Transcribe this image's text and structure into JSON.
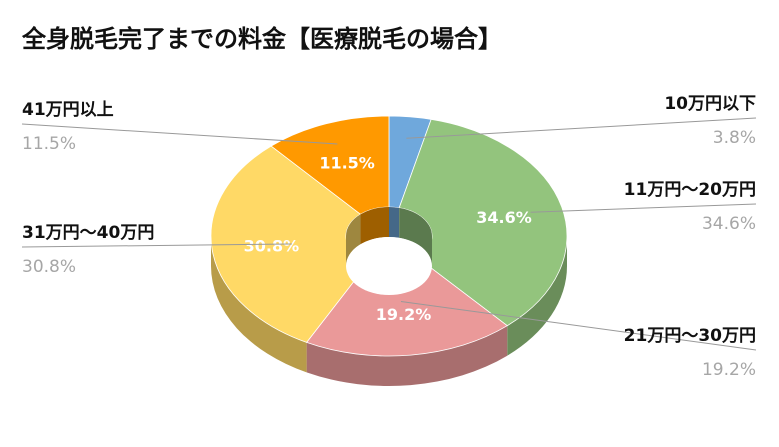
{
  "chart_data": {
    "type": "pie",
    "title": "全身脱毛完了までの料金【医療脱毛の場合】",
    "categories": [
      "10万円以下",
      "11万円～20万円",
      "21万円～30万円",
      "31万円～40万円",
      "41万円以上"
    ],
    "values": [
      3.8,
      34.6,
      19.2,
      30.8,
      11.5
    ],
    "labels": [
      "3.8%",
      "34.6%",
      "19.2%",
      "30.8%",
      "11.5%"
    ],
    "colors": [
      "#6fa8dc",
      "#93c47d",
      "#ea9999",
      "#ffd966",
      "#ff9900"
    ],
    "inner_labels": [
      "",
      "34.6%",
      "19.2%",
      "30.8%",
      "11.5%"
    ],
    "legend": "outside-callouts",
    "style": "3d-donut"
  }
}
